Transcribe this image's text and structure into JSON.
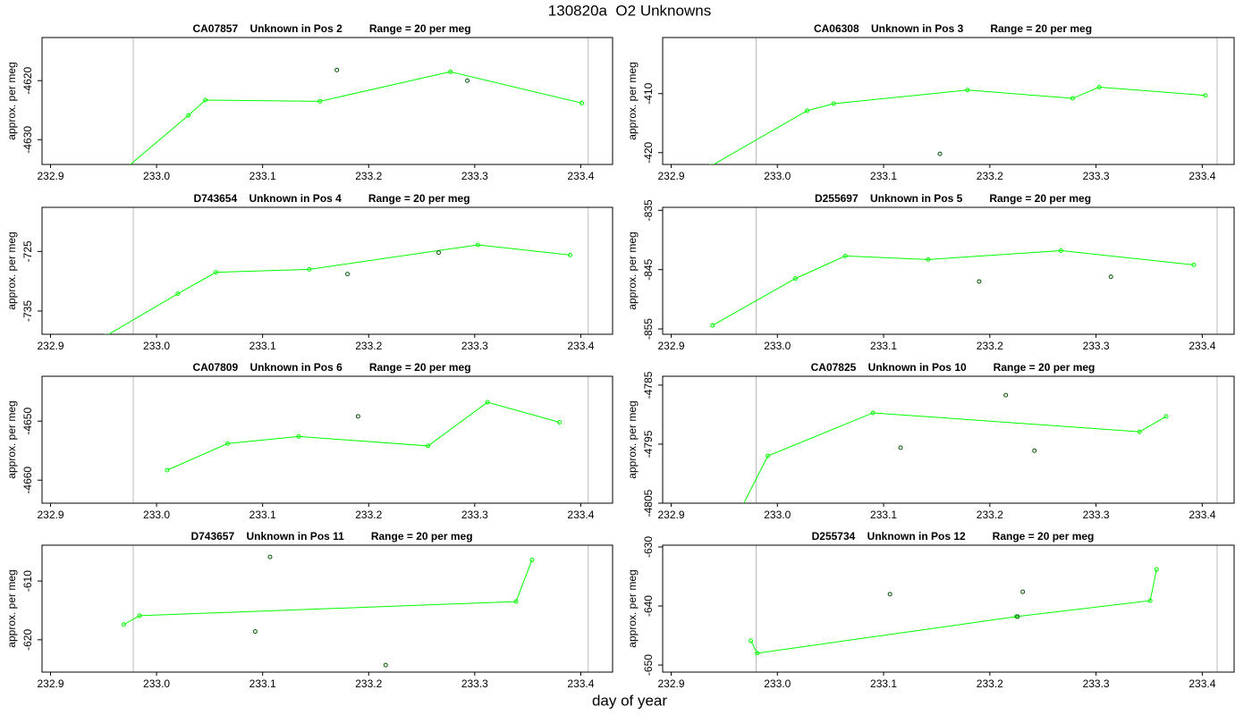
{
  "title": "130820a  O2 Unknowns",
  "xlabel": "day of year",
  "chart_data": [
    {
      "type": "line",
      "title": "CA07857    Unknown in Pos 2         Range = 20 per meg",
      "ylabel": "approx. per meg",
      "xlim": [
        232.892,
        233.43
      ],
      "ylim": [
        -4634.2,
        -4612.7
      ],
      "xticks": [
        232.9,
        {
          "value": 233,
          "label": "233.0"
        },
        233.1,
        233.2,
        233.3,
        233.4
      ],
      "yticks": [
        -4620,
        -4630
      ],
      "vlines": [
        232.978,
        233.407
      ],
      "series": [
        {
          "style": "line",
          "color": "#00ff00",
          "x": [
            232.97,
            233.03,
            233.046,
            233.154,
            233.277,
            233.401
          ],
          "values": [
            -4635,
            -4625.9,
            -4623.3,
            -4623.5,
            -4618.5,
            -4623.8
          ]
        },
        {
          "style": "points",
          "color": "#005500",
          "x": [
            233.17,
            233.293
          ],
          "values": [
            -4618.2,
            -4620.0
          ]
        }
      ]
    },
    {
      "type": "line",
      "title": "CA06308    Unknown in Pos 3         Range = 20 per meg",
      "ylabel": "approx. per meg",
      "xlim": [
        232.892,
        233.43
      ],
      "ylim": [
        -422.0,
        -400.5
      ],
      "xticks": [
        232.9,
        {
          "value": 233,
          "label": "233.0"
        },
        233.1,
        233.2,
        233.3,
        233.4
      ],
      "yticks": [
        -410,
        -420
      ],
      "vlines": [
        232.98,
        233.414
      ],
      "series": [
        {
          "style": "line",
          "color": "#00ff00",
          "x": [
            232.937,
            233.028,
            233.053,
            233.179,
            233.278,
            233.303,
            233.403
          ],
          "values": [
            -422.3,
            -412.9,
            -411.7,
            -409.4,
            -410.8,
            -408.9,
            -410.3
          ]
        },
        {
          "style": "points",
          "color": "#005500",
          "x": [
            233.153
          ],
          "values": [
            -420.2
          ]
        }
      ]
    },
    {
      "type": "line",
      "title": "D743654    Unknown in Pos 4         Range = 20 per meg",
      "ylabel": "approx. per meg",
      "xlim": [
        232.892,
        233.43
      ],
      "ylim": [
        -738.9,
        -717.6
      ],
      "xticks": [
        232.9,
        {
          "value": 233,
          "label": "233.0"
        },
        233.1,
        233.2,
        233.3,
        233.4
      ],
      "yticks": [
        -725,
        -735
      ],
      "vlines": [
        232.978,
        233.407
      ],
      "series": [
        {
          "style": "line",
          "color": "#00ff00",
          "x": [
            232.952,
            233.02,
            233.056,
            233.144,
            233.303,
            233.39
          ],
          "values": [
            -739.2,
            -732.1,
            -728.5,
            -728.0,
            -723.9,
            -725.6
          ]
        },
        {
          "style": "points",
          "color": "#005500",
          "x": [
            233.18,
            233.266
          ],
          "values": [
            -728.8,
            -725.2
          ]
        }
      ]
    },
    {
      "type": "line",
      "title": "D255697    Unknown in Pos 5         Range = 20 per meg",
      "ylabel": "approx. per meg",
      "xlim": [
        232.892,
        233.43
      ],
      "ylim": [
        -855.9,
        -834.5
      ],
      "xticks": [
        232.9,
        {
          "value": 233,
          "label": "233.0"
        },
        233.1,
        233.2,
        233.3,
        233.4
      ],
      "yticks": [
        -835,
        -845,
        -855
      ],
      "vlines": [
        232.98,
        233.414
      ],
      "series": [
        {
          "style": "line",
          "color": "#00ff00",
          "x": [
            232.939,
            233.017,
            233.064,
            233.142,
            233.267,
            233.392
          ],
          "values": [
            -854.4,
            -846.5,
            -842.7,
            -843.3,
            -841.8,
            -844.2
          ]
        },
        {
          "style": "points",
          "color": "#005500",
          "x": [
            233.19,
            233.314
          ],
          "values": [
            -847.0,
            -846.2
          ]
        }
      ]
    },
    {
      "type": "line",
      "title": "CA07809    Unknown in Pos 6         Range = 20 per meg",
      "ylabel": "approx. per meg",
      "xlim": [
        232.892,
        233.43
      ],
      "ylim": [
        -4663.9,
        -4642.4
      ],
      "xticks": [
        232.9,
        {
          "value": 233,
          "label": "233.0"
        },
        233.1,
        233.2,
        233.3,
        233.4
      ],
      "yticks": [
        -4650,
        -4660
      ],
      "vlines": [
        232.978,
        233.407
      ],
      "series": [
        {
          "style": "line",
          "color": "#00ff00",
          "x": [
            233.01,
            233.067,
            233.134,
            233.256,
            233.312,
            233.38
          ],
          "values": [
            -4658.3,
            -4653.8,
            -4652.6,
            -4654.2,
            -4646.8,
            -4650.2
          ]
        },
        {
          "style": "points",
          "color": "#005500",
          "x": [
            233.19
          ],
          "values": [
            -4649.2
          ]
        }
      ]
    },
    {
      "type": "line",
      "title": "CA07825    Unknown in Pos 10         Range = 20 per meg",
      "ylabel": "approx. per meg",
      "xlim": [
        232.892,
        233.43
      ],
      "ylim": [
        -4805,
        -4783.5
      ],
      "xticks": [
        232.9,
        {
          "value": 233,
          "label": "233.0"
        },
        233.1,
        233.2,
        233.3,
        233.4
      ],
      "yticks": [
        -4785,
        -4795,
        -4805
      ],
      "vlines": [
        232.98,
        233.414
      ],
      "series": [
        {
          "style": "line",
          "color": "#00ff00",
          "x": [
            232.967,
            232.991,
            233.09,
            233.341,
            233.366
          ],
          "values": [
            -4805.5,
            -4797.0,
            -4789.7,
            -4792.9,
            -4790.3
          ]
        },
        {
          "style": "points",
          "color": "#005500",
          "x": [
            233.116,
            233.215,
            233.242
          ],
          "values": [
            -4795.6,
            -4786.7,
            -4796.1
          ]
        }
      ]
    },
    {
      "type": "line",
      "title": "D743657    Unknown in Pos 11         Range = 20 per meg",
      "ylabel": "approx. per meg",
      "xlim": [
        232.892,
        233.43
      ],
      "ylim": [
        -625.5,
        -603.9
      ],
      "xticks": [
        232.9,
        {
          "value": 233,
          "label": "233.0"
        },
        233.1,
        233.2,
        233.3,
        233.4
      ],
      "yticks": [
        -610,
        -620
      ],
      "vlines": [
        232.978,
        233.407
      ],
      "series": [
        {
          "style": "line",
          "color": "#00ff00",
          "x": [
            232.969,
            232.984,
            233.339,
            233.354
          ],
          "values": [
            -617.4,
            -615.9,
            -613.5,
            -606.4
          ]
        },
        {
          "style": "points",
          "color": "#005500",
          "x": [
            233.107,
            233.093,
            233.216
          ],
          "values": [
            -605.9,
            -618.6,
            -624.3
          ]
        }
      ]
    },
    {
      "type": "line",
      "title": "D255734    Unknown in Pos 12         Range = 20 per meg",
      "ylabel": "approx. per meg",
      "xlim": [
        232.892,
        233.43
      ],
      "ylim": [
        -651.2,
        -629.7
      ],
      "xticks": [
        232.9,
        {
          "value": 233,
          "label": "233.0"
        },
        233.1,
        233.2,
        233.3,
        233.4
      ],
      "yticks": [
        -630,
        -640,
        -650
      ],
      "vlines": [
        232.98,
        233.414
      ],
      "series": [
        {
          "style": "line",
          "color": "#00ff00",
          "x": [
            232.975,
            232.981,
            233.225,
            233.351,
            233.357
          ],
          "values": [
            -645.9,
            -648.0,
            -641.8,
            -639.1,
            -633.8
          ]
        },
        {
          "style": "points",
          "color": "#005500",
          "x": [
            233.106,
            233.231,
            233.226
          ],
          "values": [
            -638.0,
            -637.6,
            -641.8
          ]
        }
      ]
    }
  ]
}
